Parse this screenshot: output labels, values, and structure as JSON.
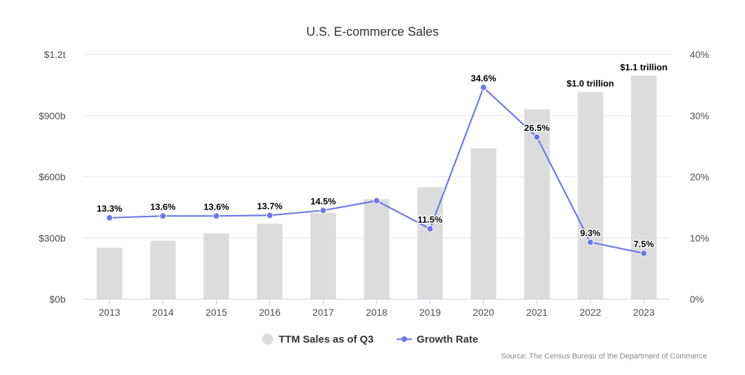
{
  "chart_data": {
    "type": "bar",
    "title": "U.S. E-commerce Sales",
    "categories": [
      "2013",
      "2014",
      "2015",
      "2016",
      "2017",
      "2018",
      "2019",
      "2020",
      "2021",
      "2022",
      "2023"
    ],
    "series": [
      {
        "name": "TTM Sales as of Q3",
        "type": "bar",
        "axis": "left",
        "unit": "billions USD",
        "color": "#dcdcdc",
        "values": [
          252,
          286,
          323,
          370,
          422,
          490,
          549,
          740,
          931,
          1015,
          1096
        ],
        "labels": [
          "",
          "",
          "",
          "",
          "",
          "",
          "",
          "",
          "",
          "$1.0 trillion",
          "$1.1 trillion"
        ]
      },
      {
        "name": "Growth Rate",
        "type": "line",
        "axis": "right",
        "unit": "%",
        "color": "#6c77f0",
        "values": [
          13.3,
          13.6,
          13.6,
          13.7,
          14.5,
          16.1,
          11.5,
          34.6,
          26.5,
          9.3,
          7.5
        ],
        "labels": [
          "13.3%",
          "13.6%",
          "13.6%",
          "13.7%",
          "14.5%",
          "",
          "11.5%",
          "34.6%",
          "26.5%",
          "9.3%",
          "7.5%"
        ]
      }
    ],
    "y_left": {
      "ylim": [
        0,
        1200
      ],
      "ticks": [
        0,
        300,
        600,
        900,
        1200
      ],
      "tick_labels": [
        "$0b",
        "$300b",
        "$600b",
        "$900b",
        "$1.2t"
      ]
    },
    "y_right": {
      "ylim": [
        0,
        40
      ],
      "ticks": [
        0,
        10,
        20,
        30,
        40
      ],
      "tick_labels": [
        "0%",
        "10%",
        "20%",
        "30%",
        "40%"
      ]
    },
    "grid": true,
    "legend": "bottom-center",
    "source": "Source: The Census Bureau of the Department of Commerce"
  }
}
